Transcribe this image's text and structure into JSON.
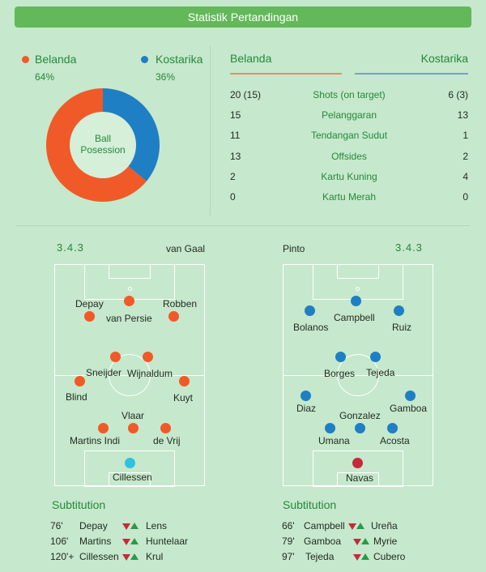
{
  "header": {
    "title": "Statistik Pertandingan"
  },
  "colors": {
    "netherlands": "#f05a28",
    "costa_rica": "#1f7fc4",
    "accent_green": "#24893a",
    "header_bg": "#63b85a"
  },
  "possession": {
    "center_label_line1": "Ball",
    "center_label_line2": "Posession",
    "home": {
      "name": "Belanda",
      "pct_label": "64%",
      "pct": 64
    },
    "away": {
      "name": "Kostarika",
      "pct_label": "36%",
      "pct": 36
    }
  },
  "stats": {
    "home_label": "Belanda",
    "away_label": "Kostarika",
    "rows": [
      {
        "home": "20 (15)",
        "label": "Shots (on target)",
        "away": "6 (3)"
      },
      {
        "home": "15",
        "label": "Pelanggaran",
        "away": "13"
      },
      {
        "home": "11",
        "label": "Tendangan Sudut",
        "away": "1"
      },
      {
        "home": "13",
        "label": "Offsides",
        "away": "2"
      },
      {
        "home": "2",
        "label": "Kartu Kuning",
        "away": "4"
      },
      {
        "home": "0",
        "label": "Kartu Merah",
        "away": "0"
      }
    ]
  },
  "lineups": {
    "home": {
      "formation": "3.4.3",
      "coach": "van Gaal",
      "players": [
        "Depay",
        "van Persie",
        "Robben",
        "Sneijder",
        "Wijnaldum",
        "Blind",
        "Kuyt",
        "Vlaar",
        "Martins Indi",
        "de Vrij",
        "Cillessen"
      ]
    },
    "away": {
      "formation": "3.4.3",
      "coach": "Pinto",
      "players": [
        "Campbell",
        "Bolanos",
        "Ruiz",
        "Borges",
        "Tejeda",
        "Diaz",
        "Gamboa",
        "Gonzalez",
        "Umana",
        "Acosta",
        "Navas"
      ]
    }
  },
  "substitutions": {
    "home": {
      "title": "Subtitution",
      "rows": [
        {
          "minute": "76'",
          "out": "Depay",
          "in": "Lens"
        },
        {
          "minute": "106'",
          "out": "Martins",
          "in": "Huntelaar"
        },
        {
          "minute": "120'+",
          "out": "Cillessen",
          "in": "Krul"
        }
      ]
    },
    "away": {
      "title": "Subtitution",
      "rows": [
        {
          "minute": "66'",
          "out": "Campbell",
          "in": "Ureña"
        },
        {
          "minute": "79'",
          "out": "Gamboa",
          "in": "Myrie"
        },
        {
          "minute": "97'",
          "out": "Tejeda",
          "in": "Cubero"
        }
      ]
    }
  }
}
